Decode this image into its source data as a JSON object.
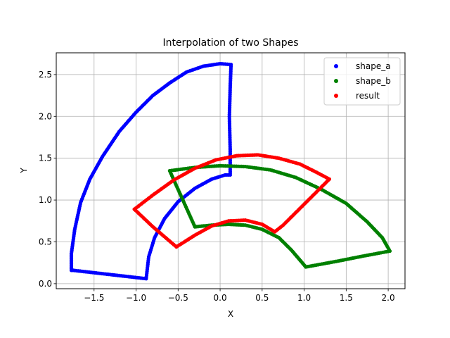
{
  "chart_data": {
    "type": "scatter",
    "title": "Interpolation of two Shapes",
    "xlabel": "X",
    "ylabel": "Y",
    "xlim": [
      -1.95,
      2.2
    ],
    "ylim": [
      -0.06,
      2.76
    ],
    "xticks": [
      -1.5,
      -1.0,
      -0.5,
      0.0,
      0.5,
      1.0,
      1.5,
      2.0
    ],
    "xtick_labels": [
      "−1.5",
      "−1.0",
      "−0.5",
      "0.0",
      "0.5",
      "1.0",
      "1.5",
      "2.0"
    ],
    "yticks": [
      0.0,
      0.5,
      1.0,
      1.5,
      2.0,
      2.5
    ],
    "ytick_labels": [
      "0.0",
      "0.5",
      "1.0",
      "1.5",
      "2.0",
      "2.5"
    ],
    "grid": true,
    "legend": "top-right",
    "series": [
      {
        "name": "shape_a",
        "color": "#0000ff",
        "points": [
          [
            -1.75,
            0.16
          ],
          [
            -0.88,
            0.06
          ],
          [
            -0.85,
            0.32
          ],
          [
            -0.78,
            0.55
          ],
          [
            -0.66,
            0.78
          ],
          [
            -0.5,
            0.98
          ],
          [
            -0.3,
            1.14
          ],
          [
            -0.1,
            1.25
          ],
          [
            0.06,
            1.3
          ],
          [
            0.12,
            1.3
          ],
          [
            0.12,
            1.6
          ],
          [
            0.11,
            2.0
          ],
          [
            0.12,
            2.35
          ],
          [
            0.13,
            2.62
          ],
          [
            0.0,
            2.63
          ],
          [
            -0.2,
            2.6
          ],
          [
            -0.4,
            2.53
          ],
          [
            -0.6,
            2.4
          ],
          [
            -0.8,
            2.25
          ],
          [
            -1.0,
            2.05
          ],
          [
            -1.2,
            1.82
          ],
          [
            -1.4,
            1.52
          ],
          [
            -1.55,
            1.25
          ],
          [
            -1.66,
            0.97
          ],
          [
            -1.73,
            0.65
          ],
          [
            -1.77,
            0.36
          ],
          [
            -1.77,
            0.16
          ]
        ]
      },
      {
        "name": "shape_b",
        "color": "#008000",
        "points": [
          [
            -0.3,
            0.68
          ],
          [
            -0.6,
            1.35
          ],
          [
            -0.3,
            1.39
          ],
          [
            0.0,
            1.41
          ],
          [
            0.3,
            1.4
          ],
          [
            0.6,
            1.36
          ],
          [
            0.9,
            1.27
          ],
          [
            1.2,
            1.13
          ],
          [
            1.5,
            0.96
          ],
          [
            1.75,
            0.74
          ],
          [
            1.93,
            0.55
          ],
          [
            2.02,
            0.39
          ],
          [
            1.7,
            0.33
          ],
          [
            1.4,
            0.27
          ],
          [
            1.02,
            0.2
          ],
          [
            0.85,
            0.4
          ],
          [
            0.7,
            0.55
          ],
          [
            0.5,
            0.65
          ],
          [
            0.3,
            0.7
          ],
          [
            0.1,
            0.71
          ],
          [
            -0.1,
            0.7
          ],
          [
            -0.3,
            0.68
          ]
        ]
      },
      {
        "name": "result",
        "color": "#ff0000",
        "points": [
          [
            -1.02,
            0.89
          ],
          [
            -0.8,
            1.06
          ],
          [
            -0.55,
            1.24
          ],
          [
            -0.3,
            1.38
          ],
          [
            -0.05,
            1.48
          ],
          [
            0.2,
            1.53
          ],
          [
            0.45,
            1.54
          ],
          [
            0.7,
            1.5
          ],
          [
            0.95,
            1.43
          ],
          [
            1.15,
            1.33
          ],
          [
            1.3,
            1.25
          ],
          [
            1.1,
            1.05
          ],
          [
            0.9,
            0.85
          ],
          [
            0.75,
            0.7
          ],
          [
            0.65,
            0.62
          ],
          [
            0.5,
            0.71
          ],
          [
            0.3,
            0.76
          ],
          [
            0.1,
            0.75
          ],
          [
            -0.1,
            0.69
          ],
          [
            -0.3,
            0.58
          ],
          [
            -0.52,
            0.44
          ],
          [
            -0.8,
            0.68
          ],
          [
            -1.02,
            0.89
          ]
        ]
      }
    ]
  }
}
